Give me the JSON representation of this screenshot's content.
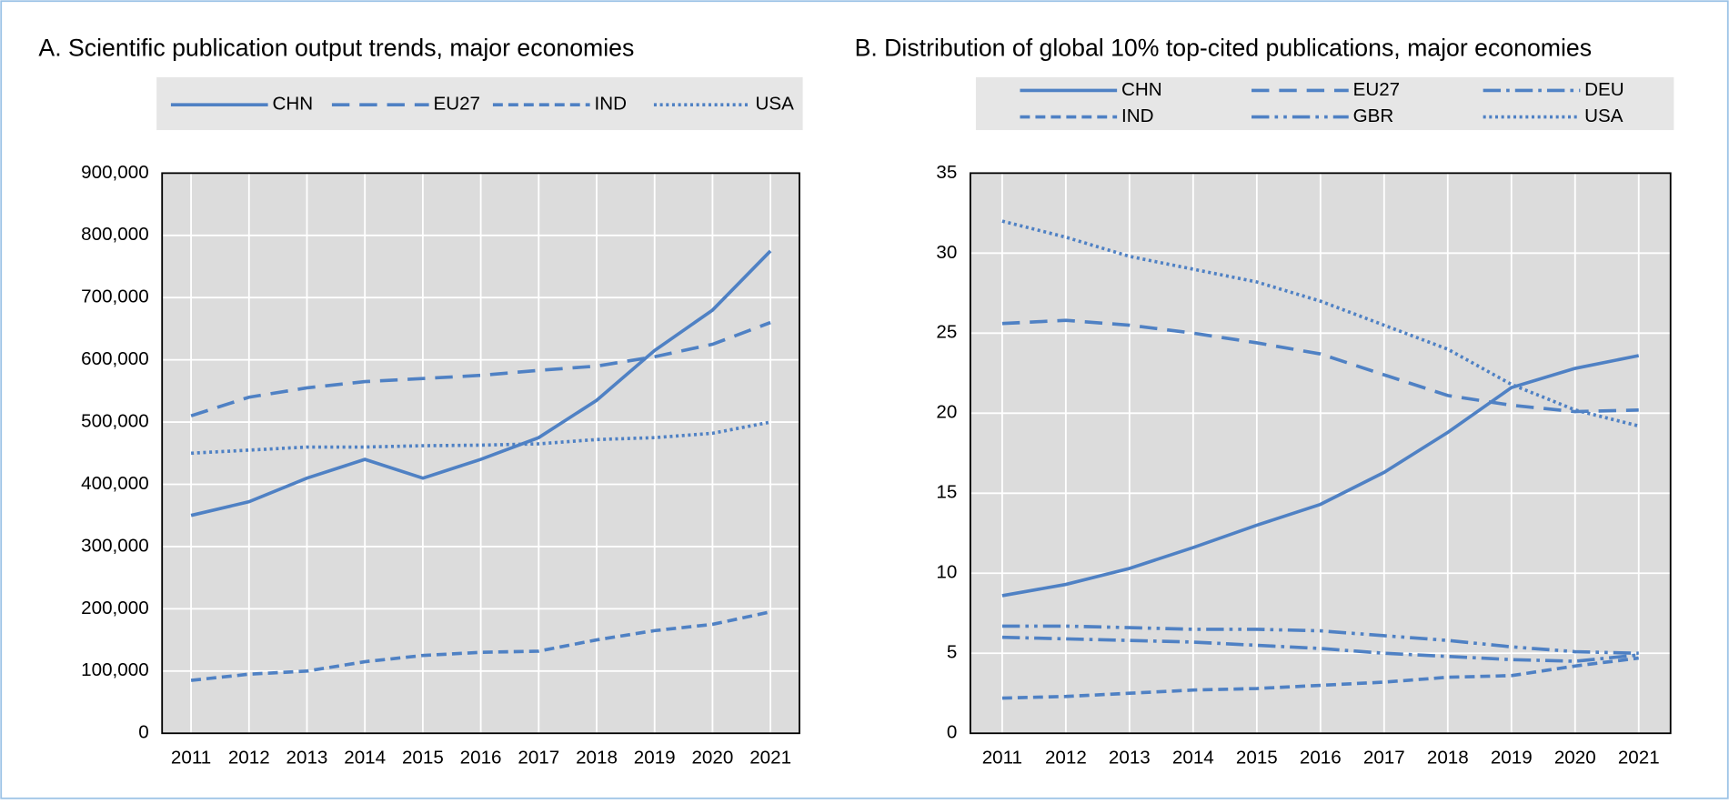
{
  "chart_data": [
    {
      "type": "line",
      "title": "A. Scientific publication output trends, major economies",
      "categories": [
        "2011",
        "2012",
        "2013",
        "2014",
        "2015",
        "2016",
        "2017",
        "2018",
        "2019",
        "2020",
        "2021"
      ],
      "series": [
        {
          "name": "CHN",
          "color": "#4f81c4",
          "dash": "solid",
          "values": [
            350000,
            372000,
            410000,
            440000,
            410000,
            440000,
            475000,
            535000,
            615000,
            680000,
            775000
          ]
        },
        {
          "name": "EU27",
          "color": "#4f81c4",
          "dash": "long",
          "values": [
            510000,
            540000,
            555000,
            565000,
            570000,
            575000,
            583000,
            590000,
            605000,
            625000,
            660000
          ]
        },
        {
          "name": "IND",
          "color": "#4f81c4",
          "dash": "medium",
          "values": [
            85000,
            95000,
            100000,
            115000,
            125000,
            130000,
            132000,
            150000,
            165000,
            175000,
            195000
          ]
        },
        {
          "name": "USA",
          "color": "#4f81c4",
          "dash": "dotted",
          "values": [
            450000,
            455000,
            460000,
            460000,
            462000,
            463000,
            465000,
            472000,
            475000,
            482000,
            500000
          ]
        }
      ],
      "ylim": [
        0,
        900000
      ],
      "yticks": [
        0,
        {
          "value": 100000,
          "label": "100,000"
        },
        {
          "value": 200000,
          "label": "200,000"
        },
        {
          "value": 300000,
          "label": "300,000"
        },
        {
          "value": 400000,
          "label": "400,000"
        },
        {
          "value": 500000,
          "label": "500,000"
        },
        {
          "value": 600000,
          "label": "600,000"
        },
        {
          "value": 700000,
          "label": "700,000"
        },
        {
          "value": 800000,
          "label": "800,000"
        },
        {
          "value": 900000,
          "label": "900,000"
        }
      ],
      "grid": true,
      "legend": "top"
    },
    {
      "type": "line",
      "title": "B. Distribution of global 10% top-cited publications, major economies",
      "categories": [
        "2011",
        "2012",
        "2013",
        "2014",
        "2015",
        "2016",
        "2017",
        "2018",
        "2019",
        "2020",
        "2021"
      ],
      "series": [
        {
          "name": "CHN",
          "color": "#4f81c4",
          "dash": "solid",
          "values": [
            8.6,
            9.3,
            10.3,
            11.6,
            13.0,
            14.3,
            16.3,
            18.8,
            21.6,
            22.8,
            23.6
          ]
        },
        {
          "name": "EU27",
          "color": "#4f81c4",
          "dash": "long",
          "values": [
            25.6,
            25.8,
            25.5,
            25.0,
            24.4,
            23.7,
            22.4,
            21.1,
            20.5,
            20.1,
            20.2
          ]
        },
        {
          "name": "DEU",
          "color": "#4f81c4",
          "dash": "dashdot",
          "values": [
            6.0,
            5.9,
            5.8,
            5.7,
            5.5,
            5.3,
            5.0,
            4.8,
            4.6,
            4.5,
            4.9
          ]
        },
        {
          "name": "IND",
          "color": "#4f81c4",
          "dash": "medium",
          "values": [
            2.2,
            2.3,
            2.5,
            2.7,
            2.8,
            3.0,
            3.2,
            3.5,
            3.6,
            4.2,
            4.7
          ]
        },
        {
          "name": "GBR",
          "color": "#4f81c4",
          "dash": "dashdotdot",
          "values": [
            6.7,
            6.7,
            6.6,
            6.5,
            6.5,
            6.4,
            6.1,
            5.8,
            5.4,
            5.1,
            5.0
          ]
        },
        {
          "name": "USA",
          "color": "#4f81c4",
          "dash": "dotted",
          "values": [
            32.0,
            31.0,
            29.8,
            29.0,
            28.2,
            27.0,
            25.5,
            24.0,
            21.8,
            20.2,
            19.2
          ]
        }
      ],
      "ylim": [
        0,
        35
      ],
      "yticks": [
        0,
        5,
        10,
        15,
        20,
        25,
        30,
        35
      ],
      "grid": true,
      "legend": "top"
    }
  ]
}
